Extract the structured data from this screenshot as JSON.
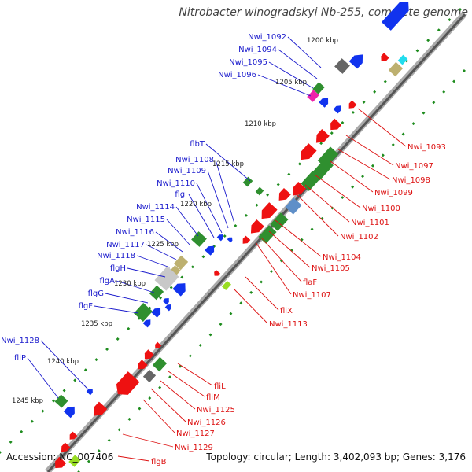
{
  "title": "Nitrobacter winogradskyi Nb-255, complete genome",
  "footer": {
    "accession": "Accession: NC_007406",
    "summary": "Topology: circular; Length: 3,402,093 bp; Genes: 3,176"
  },
  "kbp_labels": [
    "1200 kbp",
    "1205 kbp",
    "1210 kbp",
    "1215 kbp",
    "1220 kbp",
    "1225 kbp",
    "1230 kbp",
    "1235 kbp",
    "1240 kbp",
    "1245 kbp"
  ],
  "left_genes": [
    "Nwi_1092",
    "Nwi_1094",
    "Nwi_1095",
    "Nwi_1096",
    "flbT",
    "Nwi_1108",
    "Nwi_1109",
    "Nwi_1110",
    "flgI",
    "Nwi_1114",
    "Nwi_1115",
    "Nwi_1116",
    "Nwi_1117",
    "Nwi_1118",
    "flgH",
    "flgA",
    "flgG",
    "flgF",
    "Nwi_1128",
    "fliP"
  ],
  "right_genes": [
    "Nwi_1093",
    "Nwi_1097",
    "Nwi_1098",
    "Nwi_1099",
    "Nwi_1100",
    "Nwi_1101",
    "Nwi_1102",
    "Nwi_1104",
    "Nwi_1105",
    "flaF",
    "Nwi_1107",
    "fliX",
    "Nwi_1113",
    "fliL",
    "fliM",
    "Nwi_1125",
    "Nwi_1126",
    "Nwi_1127",
    "Nwi_1129",
    "flgB"
  ],
  "colors": {
    "forward_label": "#1a1acc",
    "reverse_label": "#dd1111",
    "blue": "#1133ee",
    "red": "#ee1111",
    "green": "#2f8f2f",
    "olive": "#bdb070",
    "gray": "#666666",
    "lightgray": "#c8c8c8",
    "magenta": "#ee22aa",
    "cyan": "#22ddee",
    "steel": "#5f8fc8",
    "lime": "#99dd22",
    "tick": "#1e8c1e"
  }
}
